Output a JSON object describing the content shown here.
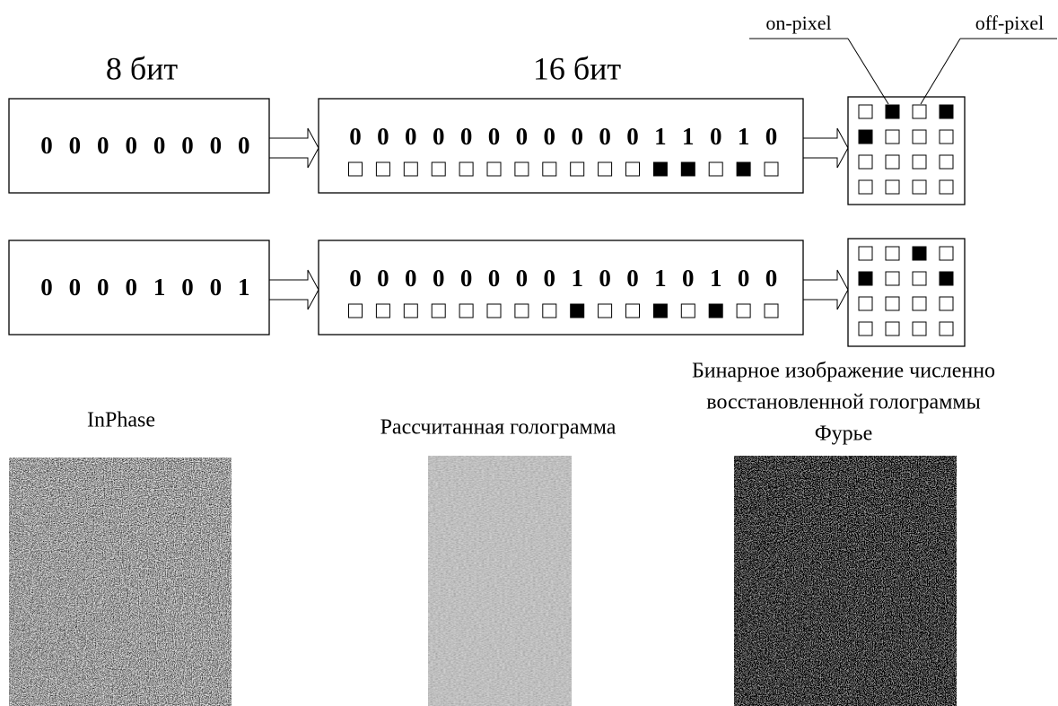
{
  "header": {
    "label_8": "8 бит",
    "label_16": "16 бит",
    "on_pixel": "on-pixel",
    "off_pixel": "off-pixel"
  },
  "rows": [
    {
      "byte8": [
        0,
        0,
        0,
        0,
        0,
        0,
        0,
        0
      ],
      "bits16": [
        0,
        0,
        0,
        0,
        0,
        0,
        0,
        0,
        0,
        0,
        0,
        1,
        1,
        0,
        1,
        0
      ],
      "grid": [
        [
          0,
          1,
          0,
          1
        ],
        [
          1,
          0,
          0,
          0
        ],
        [
          0,
          0,
          0,
          0
        ],
        [
          0,
          0,
          0,
          0
        ]
      ]
    },
    {
      "byte8": [
        0,
        0,
        0,
        0,
        1,
        0,
        0,
        1
      ],
      "bits16": [
        0,
        0,
        0,
        0,
        0,
        0,
        0,
        0,
        1,
        0,
        0,
        1,
        0,
        1,
        0,
        0
      ],
      "grid": [
        [
          0,
          0,
          1,
          0
        ],
        [
          1,
          0,
          0,
          1
        ],
        [
          0,
          0,
          0,
          0
        ],
        [
          0,
          0,
          0,
          0
        ]
      ]
    }
  ],
  "images": [
    {
      "caption": [
        "InPhase"
      ]
    },
    {
      "caption": [
        "Рассчитанная голограмма"
      ]
    },
    {
      "caption": [
        "Бинарное изображение численно",
        "восстановленной голограммы",
        "Фурье"
      ]
    }
  ]
}
